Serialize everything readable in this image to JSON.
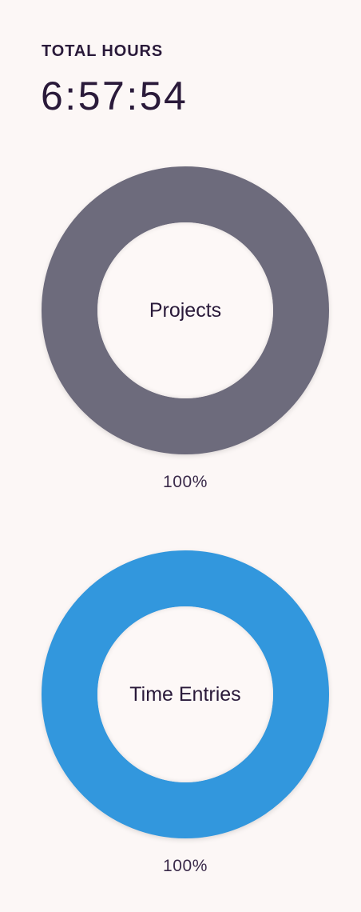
{
  "summary": {
    "label": "TOTAL HOURS",
    "value": "6:57:54"
  },
  "charts": [
    {
      "label": "Projects",
      "percent_text": "100%",
      "fraction": 1.0,
      "color": "#6d6b7c"
    },
    {
      "label": "Time Entries",
      "percent_text": "100%",
      "fraction": 1.0,
      "color": "#3297dd"
    }
  ]
}
